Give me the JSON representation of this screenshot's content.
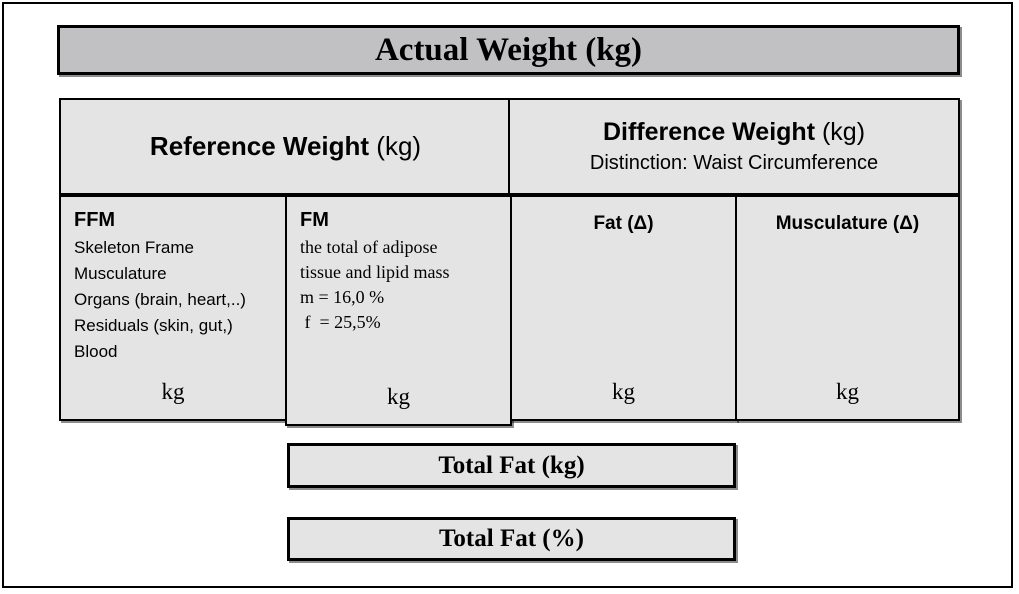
{
  "colors": {
    "page_bg": "#ffffff",
    "top_bar_bg": "#c1c1c4",
    "cell_bg": "#e4e4e4",
    "border": "#000000"
  },
  "header": {
    "title": "Actual Weight (kg)"
  },
  "table": {
    "reference": {
      "title": "Reference Weight",
      "unit": "(kg)"
    },
    "difference": {
      "title": "Difference Weight",
      "unit": "(kg)",
      "subtitle": "Distinction: Waist Circumference"
    },
    "columns": [
      {
        "id": "ffm",
        "title": "FFM",
        "lines": [
          "Skeleton Frame",
          "Musculature",
          "Organs (brain, heart,..)",
          "Residuals (skin, gut,)",
          "Blood"
        ],
        "unit": "kg"
      },
      {
        "id": "fm",
        "title": "FM",
        "lines": [
          "the total of adipose",
          "tissue and lipid mass",
          "m = 16,0 %",
          " f  = 25,5%"
        ],
        "unit": "kg"
      },
      {
        "id": "fat-delta",
        "title": "Fat (Δ)",
        "unit": "kg"
      },
      {
        "id": "musculature-delta",
        "title": "Musculature (Δ)",
        "unit": "kg"
      }
    ]
  },
  "footer": {
    "total_fat_kg": "Total Fat (kg)",
    "total_fat_percent": "Total Fat (%)"
  }
}
